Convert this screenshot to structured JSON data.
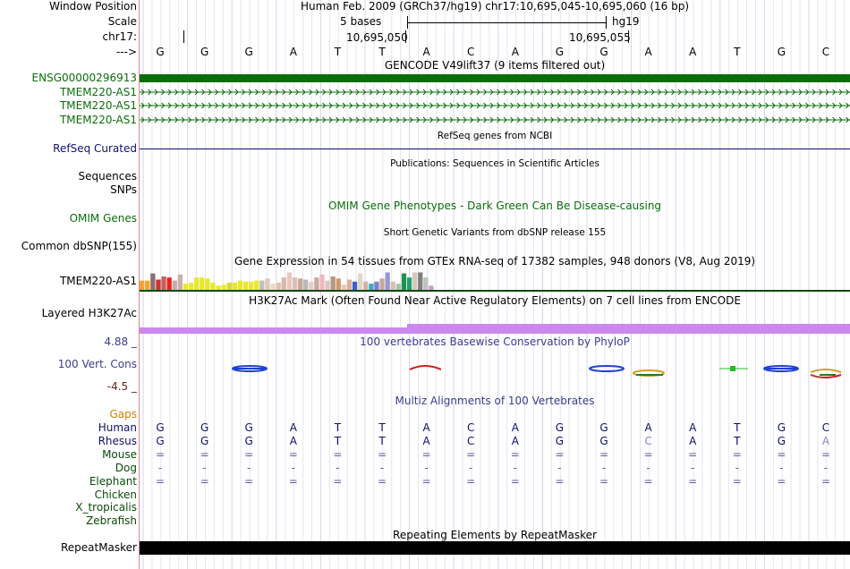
{
  "header": {
    "window_position_label": "Window Position",
    "window_position_text": "Human Feb. 2009 (GRCh37/hg19)   chr17:10,695,045-10,695,060 (16 bp)",
    "scale_label": "Scale",
    "scale_text": "5 bases",
    "scale_assembly": "hg19",
    "chrom_label": "chr17:",
    "coord_1": "10,695,050",
    "coord_2": "10,695,055",
    "seq_label": "--->",
    "bases": [
      "G",
      "G",
      "G",
      "A",
      "T",
      "T",
      "A",
      "C",
      "A",
      "G",
      "G",
      "A",
      "A",
      "T",
      "G",
      "C"
    ]
  },
  "gencode": {
    "title": "GENCODE V49lift37 (9 items filtered out)",
    "items": [
      "ENSG00000296913",
      "TMEM220-AS1",
      "TMEM220-AS1",
      "TMEM220-AS1"
    ],
    "colors": {
      "main": "#0a6e0a",
      "label": "#0a6e0a"
    }
  },
  "refseq": {
    "label": "RefSeq Curated",
    "title": "RefSeq genes from NCBI"
  },
  "publications": {
    "title": "Publications: Sequences in Scientific Articles",
    "labels": [
      "Sequences",
      "SNPs"
    ]
  },
  "omim": {
    "label": "OMIM Genes",
    "title": "OMIM Gene Phenotypes - Dark Green Can Be Disease-causing"
  },
  "dbsnp": {
    "label": "Common dbSNP(155)",
    "title": "Short Genetic Variants from dbSNP release 155"
  },
  "gtex": {
    "title": "Gene Expression in 54 tissues from GTEx RNA-seq of 17382 samples, 948 donors (V8, Aug 2019)",
    "label": "TMEM220-AS1",
    "expression": [
      0.45,
      0.45,
      0.8,
      0.5,
      0.65,
      0.6,
      0.45,
      0.75,
      0.3,
      0.35,
      0.6,
      0.6,
      0.55,
      0.35,
      0.2,
      0.25,
      0.35,
      0.35,
      0.45,
      0.4,
      0.4,
      0.45,
      0.45,
      0.55,
      0.3,
      0.35,
      0.6,
      0.85,
      0.6,
      0.55,
      0.5,
      0.4,
      0.6,
      0.75,
      0.45,
      0.65,
      0.55,
      0.25,
      0.5,
      0.4,
      0.8,
      0.4,
      0.3,
      0.4,
      0.55,
      0.85,
      0.4,
      0.3,
      0.8,
      0.6,
      0.85,
      0.85,
      0.6,
      0.2
    ],
    "colors": [
      "#f4a430",
      "#f4a430",
      "#8b6f6f",
      "#d43030",
      "#c46060",
      "#f02020",
      "#c9a9a9",
      "#c8b0a8",
      "#e8e830",
      "#e8e830",
      "#e8e830",
      "#e8e830",
      "#e8e830",
      "#e8e830",
      "#e8e830",
      "#e8e830",
      "#d8d830",
      "#e8e830",
      "#e8e830",
      "#e8e830",
      "#e8e830",
      "#e8e830",
      "#c0c0c0",
      "#e0c8b8",
      "#e8d8c8",
      "#e0c0b0",
      "#d8b8a8",
      "#e8c8c0",
      "#d8c0b8",
      "#c8a898",
      "#b8b8b8",
      "#e0d0c8",
      "#c8a8a0",
      "#f0b8c0",
      "#d8c8c0",
      "#b89880",
      "#cc9970",
      "#e8c8b8",
      "#dcb098",
      "#4060d0",
      "#e0d8c8",
      "#d8b0a0",
      "#40a8c8",
      "#8080d0",
      "#c8a898",
      "#9898d0",
      "#d8c0b0",
      "#a0c8a0",
      "#209050",
      "#20a070",
      "#d8c8b8",
      "#808080",
      "#c0c0c0",
      "#cc99cc"
    ]
  },
  "h3k27ac": {
    "label": "Layered H3K27Ac",
    "title": "H3K27Ac Mark (Often Found Near Active Regulatory Elements) on 7 cell lines from ENCODE"
  },
  "conservation": {
    "title": "100 vertebrates Basewise Conservation by PhyloP",
    "label": "100 Vert. Cons",
    "max": "4.88 _",
    "min": "-4.5 _"
  },
  "multiz": {
    "title": "Multiz Alignments of 100 Vertebrates",
    "gaps_label": "Gaps",
    "species": [
      {
        "name": "Human",
        "row": [
          "G",
          "G",
          "G",
          "A",
          "T",
          "T",
          "A",
          "C",
          "A",
          "G",
          "G",
          "A",
          "A",
          "T",
          "G",
          "C"
        ]
      },
      {
        "name": "Rhesus",
        "row": [
          "G",
          "G",
          "G",
          "A",
          "T",
          "T",
          "A",
          "C",
          "A",
          "G",
          "G",
          "C",
          "A",
          "T",
          "G",
          "A"
        ]
      },
      {
        "name": "Mouse",
        "row": [
          "=",
          "=",
          "=",
          "=",
          "=",
          "=",
          "=",
          "=",
          "=",
          "=",
          "=",
          "=",
          "=",
          "=",
          "=",
          "="
        ]
      },
      {
        "name": "Dog",
        "row": [
          "-",
          "-",
          "-",
          "-",
          "-",
          "-",
          "-",
          "-",
          "-",
          "-",
          "-",
          "-",
          "-",
          "-",
          "-",
          "-"
        ]
      },
      {
        "name": "Elephant",
        "row": [
          "=",
          "=",
          "=",
          "=",
          "=",
          "=",
          "=",
          "=",
          "=",
          "=",
          "=",
          "=",
          "=",
          "=",
          "=",
          "="
        ]
      },
      {
        "name": "Chicken",
        "row": []
      },
      {
        "name": "X_tropicalis",
        "row": []
      },
      {
        "name": "Zebrafish",
        "row": []
      }
    ]
  },
  "repeatmasker": {
    "label": "RepeatMasker",
    "title": "Repeating Elements by RepeatMasker"
  }
}
